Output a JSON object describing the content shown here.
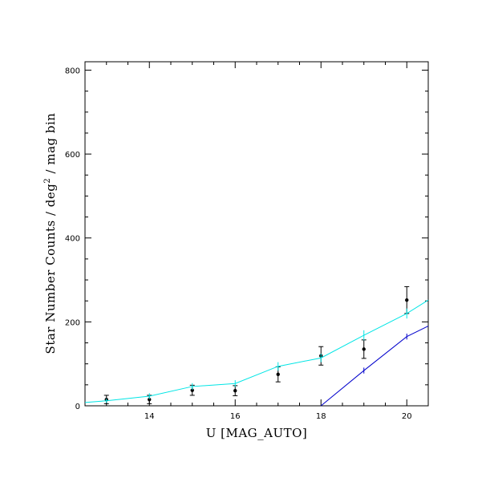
{
  "chart_data": {
    "type": "scatter",
    "xlabel": "U [MAG_AUTO]",
    "ylabel_main": "Star Number Counts / deg",
    "ylabel_sup": "2",
    "ylabel_tail": " / mag bin",
    "xlim": [
      12.5,
      20.5
    ],
    "ylim": [
      0,
      820
    ],
    "x_major_ticks": [
      14,
      16,
      18,
      20
    ],
    "x_tick_labels": [
      "14",
      "16",
      "18",
      "20"
    ],
    "x_minor_step": 0.5,
    "y_major_ticks": [
      0,
      200,
      400,
      600,
      800
    ],
    "y_tick_labels": [
      "0",
      "200",
      "400",
      "600",
      "800"
    ],
    "y_minor_step": 50,
    "grid": false,
    "series": [
      {
        "kind": "points_with_errors",
        "color": "#000000",
        "x": [
          13,
          14,
          15,
          16,
          17,
          18,
          19,
          20
        ],
        "y": [
          15,
          15,
          37,
          36,
          75,
          119,
          135,
          252
        ],
        "yerr": [
          10,
          10,
          12,
          12,
          18,
          22,
          22,
          32
        ]
      },
      {
        "kind": "line",
        "color": "#00e5e5",
        "x": [
          12.5,
          13,
          14,
          15,
          16,
          17,
          18,
          19,
          20,
          20.5
        ],
        "y": [
          8,
          12,
          23,
          46,
          53,
          94,
          114,
          168,
          220,
          252
        ],
        "yerr": [
          0,
          5,
          7,
          8,
          8,
          10,
          10,
          12,
          12,
          0
        ]
      },
      {
        "kind": "line",
        "color": "#0000cc",
        "x": [
          18,
          19,
          20,
          20.5
        ],
        "y": [
          0,
          84,
          165,
          190
        ],
        "yerr": [
          0,
          7,
          7,
          0
        ]
      }
    ]
  }
}
